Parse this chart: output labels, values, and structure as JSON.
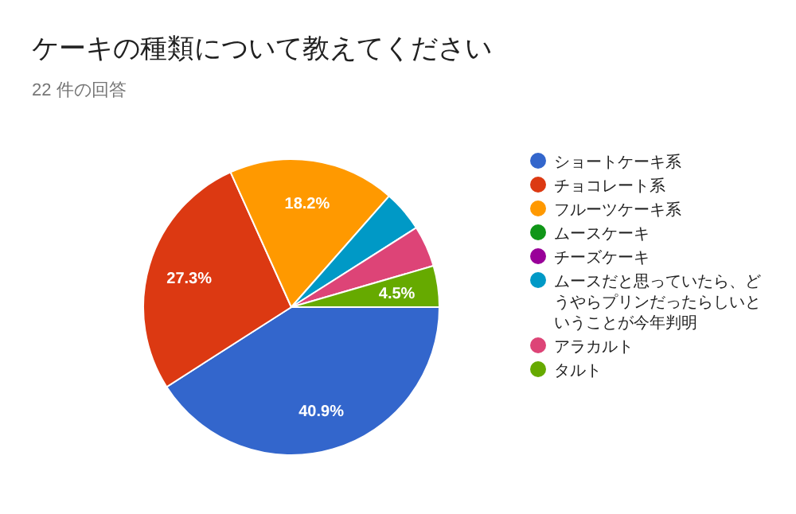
{
  "chart_data": {
    "type": "pie",
    "title": "ケーキの種類について教えてください",
    "subtitle": "22 件の回答",
    "categories": [
      "ショートケーキ系",
      "チョコレート系",
      "フルーツケーキ系",
      "ムースケーキ",
      "チーズケーキ",
      "ムースだと思っていたら、どうやらプリンだったらしいということが今年判明",
      "アラカルト",
      "タルト"
    ],
    "values": [
      40.9,
      27.3,
      18.2,
      0,
      0,
      4.5,
      4.5,
      4.5
    ],
    "colors": [
      "#3366cc",
      "#dc3912",
      "#ff9900",
      "#109618",
      "#990099",
      "#0099c6",
      "#dd4477",
      "#66aa00"
    ],
    "value_labels": [
      "40.9%",
      "27.3%",
      "18.2%",
      null,
      null,
      null,
      null,
      "4.5%"
    ],
    "legend": "right"
  }
}
